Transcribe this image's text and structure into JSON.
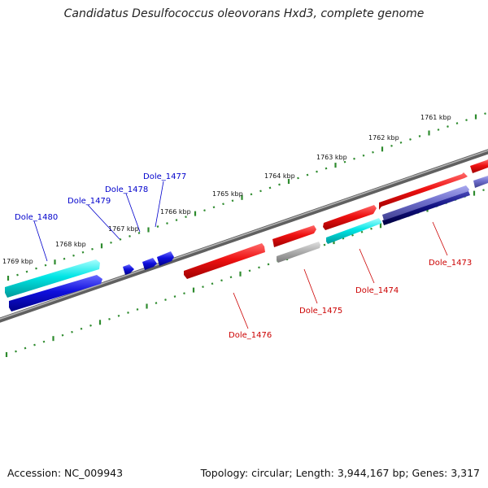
{
  "header": {
    "title": "Candidatus Desulfococcus oleovorans Hxd3, complete genome"
  },
  "footer": {
    "accession": "Accession: NC_009943",
    "summary": "Topology: circular; Length: 3,944,167 bp; Genes: 3,317"
  },
  "colors": {
    "backbone": "#7a7a7a",
    "tick_dot": "#2e8b2e",
    "forward_label": "#0000cc",
    "reverse_label": "#cc0000",
    "red_gene": "#ee1111",
    "cyan_gene": "#00e5e5",
    "blue_gene": "#1010dd",
    "gray_gene": "#b0b0b0",
    "slate_gene": "#6e6ecc",
    "navy_gene": "#101080"
  },
  "ruler": {
    "ticks": [
      {
        "label": "1761 kbp"
      },
      {
        "label": "1762 kbp"
      },
      {
        "label": "1763 kbp"
      },
      {
        "label": "1764 kbp"
      },
      {
        "label": "1765 kbp"
      },
      {
        "label": "1766 kbp"
      },
      {
        "label": "1767 kbp"
      },
      {
        "label": "1768 kbp"
      },
      {
        "label": "1769 kbp"
      }
    ]
  },
  "genes": {
    "labels": [
      {
        "name": "Dole_1480",
        "strand": "forward"
      },
      {
        "name": "Dole_1479",
        "strand": "forward"
      },
      {
        "name": "Dole_1478",
        "strand": "forward"
      },
      {
        "name": "Dole_1477",
        "strand": "forward"
      },
      {
        "name": "Dole_1476",
        "strand": "reverse"
      },
      {
        "name": "Dole_1475",
        "strand": "reverse"
      },
      {
        "name": "Dole_1474",
        "strand": "reverse"
      },
      {
        "name": "Dole_1473",
        "strand": "reverse"
      }
    ]
  }
}
